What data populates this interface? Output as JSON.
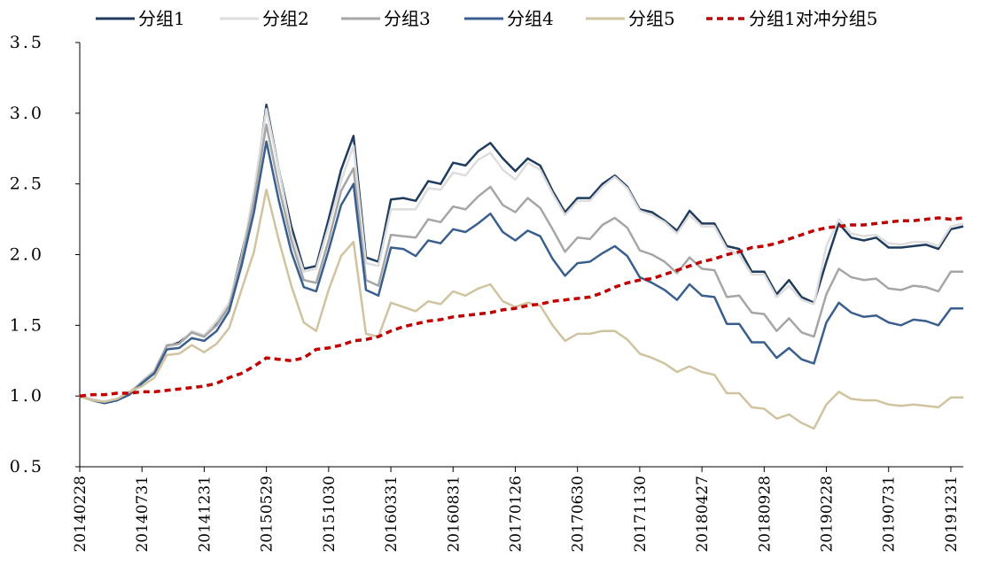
{
  "chart_data": {
    "type": "line",
    "title": "",
    "xlabel": "",
    "ylabel": "",
    "ylim": [
      0.5,
      3.5
    ],
    "yticks": [
      "0.5",
      "1.0",
      "1.5",
      "2.0",
      "2.5",
      "3.0",
      "3.5"
    ],
    "ytick_values": [
      0.5,
      1.0,
      1.5,
      2.0,
      2.5,
      3.0,
      3.5
    ],
    "xtick_labels": [
      "20140228",
      "20140731",
      "20141231",
      "20150529",
      "20151030",
      "20160331",
      "20160831",
      "20170126",
      "20170630",
      "20171130",
      "20180427",
      "20180928",
      "20190228",
      "20190731",
      "20191231"
    ],
    "xtick_index": [
      0,
      5,
      10,
      15,
      20,
      25,
      30,
      35,
      40,
      45,
      50,
      55,
      60,
      65,
      70
    ],
    "grid": false,
    "legend_position": "top",
    "x": [
      "20140228",
      "20140331",
      "20140430",
      "20140530",
      "20140630",
      "20140731",
      "20140829",
      "20140930",
      "20141031",
      "20141128",
      "20141231",
      "20150130",
      "20150227",
      "20150331",
      "20150430",
      "20150529",
      "20150630",
      "20150731",
      "20150831",
      "20150930",
      "20151030",
      "20151130",
      "20151231",
      "20160129",
      "20160229",
      "20160331",
      "20160429",
      "20160531",
      "20160630",
      "20160729",
      "20160831",
      "20160930",
      "20161031",
      "20161130",
      "20161230",
      "20170126",
      "20170228",
      "20170331",
      "20170428",
      "20170531",
      "20170630",
      "20170731",
      "20170831",
      "20170929",
      "20171031",
      "20171130",
      "20171229",
      "20180131",
      "20180228",
      "20180330",
      "20180427",
      "20180531",
      "20180629",
      "20180731",
      "20180831",
      "20180928",
      "20181031",
      "20181130",
      "20181228",
      "20190131",
      "20190228",
      "20190329",
      "20190430",
      "20190531",
      "20190628",
      "20190731",
      "20190830",
      "20190930",
      "20191031",
      "20191129",
      "20191231",
      "20200123"
    ],
    "series": [
      {
        "name": "分组1",
        "color": "#1f3b5e",
        "dash": "solid",
        "values": [
          1.0,
          0.97,
          0.95,
          0.97,
          1.02,
          1.1,
          1.18,
          1.35,
          1.38,
          1.45,
          1.42,
          1.52,
          1.65,
          2.0,
          2.4,
          3.06,
          2.6,
          2.2,
          1.9,
          1.92,
          2.25,
          2.6,
          2.84,
          1.98,
          1.95,
          2.39,
          2.4,
          2.38,
          2.52,
          2.5,
          2.65,
          2.63,
          2.73,
          2.79,
          2.68,
          2.59,
          2.68,
          2.63,
          2.45,
          2.3,
          2.4,
          2.4,
          2.5,
          2.56,
          2.48,
          2.32,
          2.3,
          2.24,
          2.17,
          2.31,
          2.22,
          2.22,
          2.06,
          2.04,
          1.88,
          1.88,
          1.72,
          1.82,
          1.7,
          1.66,
          1.95,
          2.22,
          2.12,
          2.1,
          2.12,
          2.05,
          2.05,
          2.06,
          2.07,
          2.04,
          2.18,
          2.2
        ]
      },
      {
        "name": "分组2",
        "color": "#dddddd",
        "dash": "solid",
        "values": [
          1.0,
          0.98,
          0.96,
          0.98,
          1.03,
          1.1,
          1.18,
          1.34,
          1.37,
          1.46,
          1.43,
          1.53,
          1.66,
          1.98,
          2.45,
          3.03,
          2.6,
          2.15,
          1.88,
          1.9,
          2.2,
          2.52,
          2.77,
          1.94,
          1.92,
          2.32,
          2.32,
          2.32,
          2.47,
          2.46,
          2.58,
          2.56,
          2.67,
          2.72,
          2.6,
          2.53,
          2.65,
          2.6,
          2.43,
          2.28,
          2.38,
          2.38,
          2.48,
          2.55,
          2.47,
          2.31,
          2.28,
          2.23,
          2.15,
          2.28,
          2.2,
          2.2,
          2.04,
          2.0,
          1.86,
          1.86,
          1.7,
          1.78,
          1.68,
          1.65,
          2.06,
          2.25,
          2.15,
          2.13,
          2.14,
          2.08,
          2.07,
          2.09,
          2.09,
          2.06,
          2.2,
          2.22
        ]
      },
      {
        "name": "分组3",
        "color": "#a6a6a6",
        "dash": "solid",
        "values": [
          1.0,
          0.97,
          0.96,
          0.98,
          1.02,
          1.1,
          1.17,
          1.36,
          1.37,
          1.45,
          1.42,
          1.5,
          1.63,
          1.96,
          2.38,
          2.92,
          2.48,
          2.1,
          1.82,
          1.8,
          2.1,
          2.45,
          2.61,
          1.82,
          1.78,
          2.14,
          2.13,
          2.12,
          2.25,
          2.23,
          2.34,
          2.32,
          2.41,
          2.48,
          2.35,
          2.3,
          2.4,
          2.33,
          2.18,
          2.02,
          2.12,
          2.11,
          2.21,
          2.26,
          2.19,
          2.03,
          2.0,
          1.95,
          1.87,
          1.98,
          1.9,
          1.89,
          1.7,
          1.71,
          1.59,
          1.58,
          1.46,
          1.55,
          1.45,
          1.42,
          1.72,
          1.9,
          1.84,
          1.82,
          1.83,
          1.76,
          1.75,
          1.78,
          1.77,
          1.74,
          1.88,
          1.88
        ]
      },
      {
        "name": "分组4",
        "color": "#3a5f8f",
        "dash": "solid",
        "values": [
          1.0,
          0.97,
          0.95,
          0.97,
          1.01,
          1.09,
          1.16,
          1.33,
          1.34,
          1.41,
          1.39,
          1.46,
          1.6,
          1.92,
          2.3,
          2.8,
          2.38,
          2.02,
          1.77,
          1.74,
          2.03,
          2.35,
          2.5,
          1.75,
          1.71,
          2.05,
          2.04,
          1.99,
          2.1,
          2.08,
          2.18,
          2.16,
          2.22,
          2.29,
          2.16,
          2.1,
          2.17,
          2.13,
          1.97,
          1.85,
          1.94,
          1.95,
          2.01,
          2.06,
          1.99,
          1.84,
          1.8,
          1.75,
          1.68,
          1.79,
          1.71,
          1.7,
          1.51,
          1.51,
          1.38,
          1.38,
          1.27,
          1.34,
          1.26,
          1.23,
          1.52,
          1.66,
          1.59,
          1.56,
          1.57,
          1.52,
          1.5,
          1.54,
          1.53,
          1.5,
          1.62,
          1.62
        ]
      },
      {
        "name": "分组5",
        "color": "#cfc3a0",
        "dash": "solid",
        "values": [
          1.0,
          0.97,
          0.96,
          0.98,
          1.03,
          1.07,
          1.13,
          1.29,
          1.3,
          1.36,
          1.31,
          1.37,
          1.48,
          1.75,
          2.02,
          2.46,
          2.1,
          1.78,
          1.52,
          1.46,
          1.75,
          1.99,
          2.09,
          1.44,
          1.42,
          1.66,
          1.63,
          1.6,
          1.67,
          1.65,
          1.74,
          1.71,
          1.76,
          1.79,
          1.67,
          1.63,
          1.66,
          1.64,
          1.5,
          1.39,
          1.44,
          1.44,
          1.46,
          1.46,
          1.4,
          1.3,
          1.27,
          1.23,
          1.17,
          1.21,
          1.17,
          1.15,
          1.02,
          1.02,
          0.92,
          0.91,
          0.84,
          0.87,
          0.81,
          0.77,
          0.94,
          1.03,
          0.98,
          0.97,
          0.97,
          0.94,
          0.93,
          0.94,
          0.93,
          0.92,
          0.99,
          0.99
        ]
      },
      {
        "name": "分组1对冲分组5",
        "color": "#c00000",
        "dash": "dashed",
        "values": [
          1.0,
          1.01,
          1.01,
          1.02,
          1.02,
          1.03,
          1.03,
          1.04,
          1.05,
          1.06,
          1.07,
          1.09,
          1.13,
          1.16,
          1.21,
          1.27,
          1.26,
          1.25,
          1.27,
          1.33,
          1.34,
          1.36,
          1.39,
          1.4,
          1.42,
          1.46,
          1.49,
          1.51,
          1.53,
          1.54,
          1.56,
          1.57,
          1.58,
          1.59,
          1.61,
          1.62,
          1.64,
          1.65,
          1.67,
          1.68,
          1.69,
          1.7,
          1.73,
          1.77,
          1.8,
          1.82,
          1.83,
          1.86,
          1.89,
          1.92,
          1.95,
          1.97,
          2.0,
          2.02,
          2.05,
          2.06,
          2.08,
          2.11,
          2.14,
          2.17,
          2.19,
          2.2,
          2.21,
          2.21,
          2.22,
          2.23,
          2.24,
          2.24,
          2.25,
          2.26,
          2.25,
          2.26
        ]
      }
    ]
  }
}
